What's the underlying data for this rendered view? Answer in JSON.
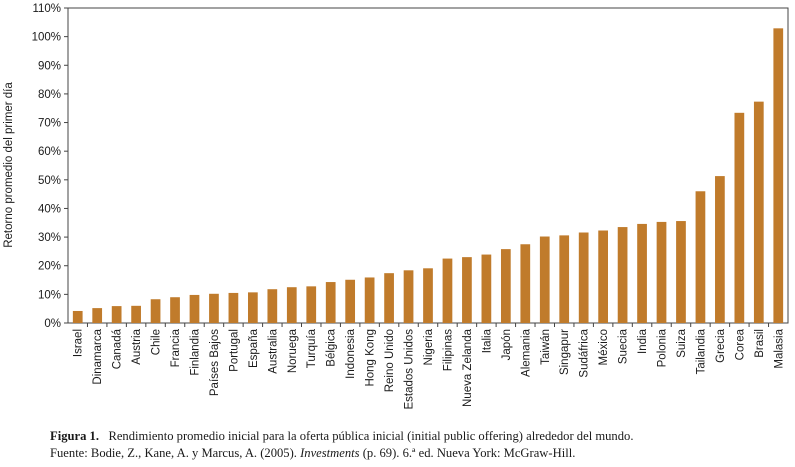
{
  "chart_data": {
    "type": "bar",
    "ylabel": "Retorno promedio del primer día",
    "xlabel": "",
    "ylim": [
      0,
      110
    ],
    "yticks": [
      0,
      10,
      20,
      30,
      40,
      50,
      60,
      70,
      80,
      90,
      100,
      110
    ],
    "ytick_suffix": "%",
    "grid": false,
    "bar_color": "#c07b2b",
    "categories": [
      "Israel",
      "Dinamarca",
      "Canadá",
      "Austria",
      "Chile",
      "Francia",
      "Finlandia",
      "Países Bajos",
      "Portugal",
      "España",
      "Australia",
      "Noruega",
      "Turquía",
      "Bélgica",
      "Indonesia",
      "Hong Kong",
      "Reino Unido",
      "Estados Unidos",
      "Nigeria",
      "Filipinas",
      "Nueva Zelanda",
      "Italia",
      "Japón",
      "Alemania",
      "Taiwán",
      "Singapur",
      "Sudáfrica",
      "México",
      "Suecia",
      "India",
      "Polonia",
      "Suiza",
      "Tailandia",
      "Grecia",
      "Corea",
      "Brasil",
      "Malasia"
    ],
    "values": [
      4.2,
      5.2,
      5.9,
      6.0,
      8.3,
      9.0,
      9.8,
      10.2,
      10.5,
      10.7,
      11.8,
      12.5,
      12.8,
      14.3,
      15.1,
      15.9,
      17.4,
      18.4,
      19.1,
      22.5,
      23.0,
      23.9,
      25.8,
      27.5,
      30.2,
      30.6,
      31.6,
      32.3,
      33.5,
      34.6,
      35.3,
      35.6,
      46.0,
      51.3,
      73.4,
      77.3,
      102.9
    ]
  },
  "caption": {
    "label": "Figura 1.",
    "text": "Rendimiento promedio inicial para la oferta pública inicial (initial public offering) alrededor del mundo.",
    "source_prefix": "Fuente: Bodie, Z., Kane, A. y Marcus, A. (2005).",
    "source_title": "Investments",
    "source_suffix": "(p. 69). 6.ª ed. Nueva York: McGraw-Hill."
  }
}
